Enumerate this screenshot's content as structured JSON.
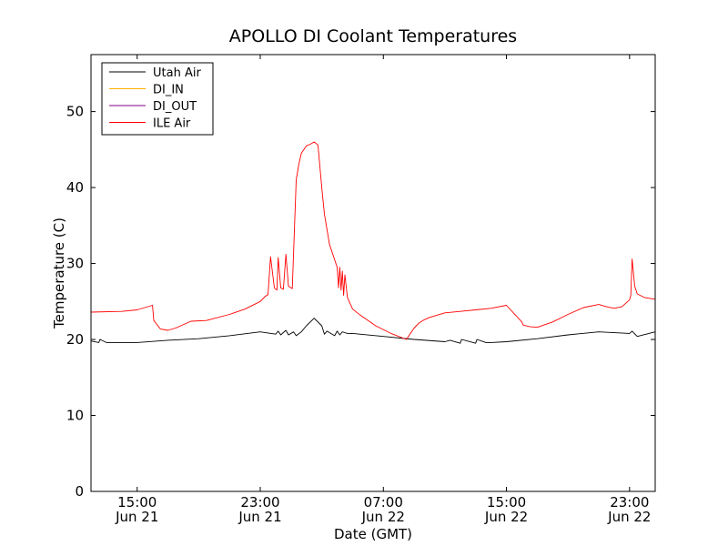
{
  "chart_data": {
    "type": "line",
    "title": "APOLLO DI Coolant Temperatures",
    "xlabel": "Date (GMT)",
    "ylabel": "Temperature (C)",
    "ylim": [
      0,
      57.5
    ],
    "xlim": [
      "2012-06-21 12:00",
      "2012-06-23 00:40"
    ],
    "yticks": [
      0,
      10,
      20,
      30,
      40,
      50
    ],
    "xticks": [
      {
        "time": "2012-06-21 15:00",
        "label1": "15:00",
        "label2": "Jun 21"
      },
      {
        "time": "2012-06-21 23:00",
        "label1": "23:00",
        "label2": "Jun 21"
      },
      {
        "time": "2012-06-22 07:00",
        "label1": "07:00",
        "label2": "Jun 22"
      },
      {
        "time": "2012-06-22 15:00",
        "label1": "15:00",
        "label2": "Jun 22"
      },
      {
        "time": "2012-06-22 23:00",
        "label1": "23:00",
        "label2": "Jun 22"
      }
    ],
    "grid": false,
    "legend_position": "top-left",
    "series": [
      {
        "name": "Utah Air",
        "color": "#000000",
        "x": [
          "2012-06-21 12:00",
          "2012-06-21 12:30",
          "2012-06-21 12:35",
          "2012-06-21 13:00",
          "2012-06-21 14:00",
          "2012-06-21 15:00",
          "2012-06-21 17:00",
          "2012-06-21 19:00",
          "2012-06-21 21:00",
          "2012-06-21 23:00",
          "2012-06-22 00:00",
          "2012-06-22 00:10",
          "2012-06-22 00:20",
          "2012-06-22 00:40",
          "2012-06-22 00:50",
          "2012-06-22 01:10",
          "2012-06-22 01:20",
          "2012-06-22 01:40",
          "2012-06-22 02:00",
          "2012-06-22 02:30",
          "2012-06-22 03:00",
          "2012-06-22 03:10",
          "2012-06-22 03:20",
          "2012-06-22 03:50",
          "2012-06-22 04:00",
          "2012-06-22 04:10",
          "2012-06-22 04:20",
          "2012-06-22 04:30",
          "2012-06-22 04:40",
          "2012-06-22 05:00",
          "2012-06-22 07:00",
          "2012-06-22 09:00",
          "2012-06-22 11:00",
          "2012-06-22 11:20",
          "2012-06-22 12:00",
          "2012-06-22 12:05",
          "2012-06-22 13:00",
          "2012-06-22 13:05",
          "2012-06-22 13:40",
          "2012-06-22 14:00",
          "2012-06-22 15:00",
          "2012-06-22 17:00",
          "2012-06-22 19:00",
          "2012-06-22 21:00",
          "2012-06-22 23:00",
          "2012-06-22 23:10",
          "2012-06-22 23:30",
          "2012-06-23 00:40"
        ],
        "y": [
          19.8,
          19.6,
          20.0,
          19.6,
          19.6,
          19.6,
          19.9,
          20.1,
          20.5,
          21.0,
          20.7,
          21.1,
          20.6,
          21.2,
          20.6,
          21.0,
          20.5,
          21.0,
          21.8,
          22.8,
          21.8,
          20.7,
          21.1,
          20.5,
          21.1,
          20.6,
          21.0,
          20.9,
          20.8,
          20.8,
          20.4,
          20.0,
          19.7,
          19.9,
          19.5,
          20.0,
          19.5,
          20.0,
          19.6,
          19.6,
          19.7,
          20.1,
          20.6,
          21.0,
          20.8,
          21.1,
          20.4,
          21.0
        ]
      },
      {
        "name": "DI_IN",
        "color": "#ffb000",
        "x": [],
        "y": []
      },
      {
        "name": "DI_OUT",
        "color": "#800080",
        "x": [],
        "y": []
      },
      {
        "name": "ILE Air",
        "color": "#ff0000",
        "x": [
          "2012-06-21 12:00",
          "2012-06-21 14:00",
          "2012-06-21 15:00",
          "2012-06-21 16:00",
          "2012-06-21 16:05",
          "2012-06-21 16:30",
          "2012-06-21 17:00",
          "2012-06-21 17:30",
          "2012-06-21 18:30",
          "2012-06-21 19:30",
          "2012-06-21 21:00",
          "2012-06-21 22:00",
          "2012-06-21 23:00",
          "2012-06-21 23:20",
          "2012-06-21 23:30",
          "2012-06-21 23:40",
          "2012-06-21 23:55",
          "2012-06-22 00:05",
          "2012-06-22 00:10",
          "2012-06-22 00:20",
          "2012-06-22 00:30",
          "2012-06-22 00:40",
          "2012-06-22 00:50",
          "2012-06-22 01:05",
          "2012-06-22 01:15",
          "2012-06-22 01:20",
          "2012-06-22 01:30",
          "2012-06-22 01:40",
          "2012-06-22 02:00",
          "2012-06-22 02:15",
          "2012-06-22 02:30",
          "2012-06-22 02:45",
          "2012-06-22 03:00",
          "2012-06-22 03:10",
          "2012-06-22 03:30",
          "2012-06-22 03:50",
          "2012-06-22 04:00",
          "2012-06-22 04:05",
          "2012-06-22 04:10",
          "2012-06-22 04:15",
          "2012-06-22 04:20",
          "2012-06-22 04:25",
          "2012-06-22 04:30",
          "2012-06-22 04:40",
          "2012-06-22 05:00",
          "2012-06-22 05:30",
          "2012-06-22 06:30",
          "2012-06-22 07:30",
          "2012-06-22 08:30",
          "2012-06-22 09:00",
          "2012-06-22 09:20",
          "2012-06-22 09:40",
          "2012-06-22 10:00",
          "2012-06-22 11:00",
          "2012-06-22 12:00",
          "2012-06-22 13:00",
          "2012-06-22 14:00",
          "2012-06-22 15:00",
          "2012-06-22 16:00",
          "2012-06-22 16:05",
          "2012-06-22 16:30",
          "2012-06-22 17:00",
          "2012-06-22 18:00",
          "2012-06-22 19:00",
          "2012-06-22 20:00",
          "2012-06-22 21:00",
          "2012-06-22 21:30",
          "2012-06-22 22:00",
          "2012-06-22 22:30",
          "2012-06-22 23:00",
          "2012-06-22 23:05",
          "2012-06-22 23:10",
          "2012-06-22 23:20",
          "2012-06-22 23:30",
          "2012-06-23 00:00",
          "2012-06-23 00:40"
        ],
        "y": [
          23.6,
          23.7,
          23.9,
          24.5,
          22.5,
          21.4,
          21.2,
          21.5,
          22.4,
          22.5,
          23.3,
          24.0,
          25.0,
          25.7,
          25.9,
          30.9,
          26.8,
          26.5,
          30.8,
          26.8,
          26.6,
          31.2,
          27.0,
          26.7,
          36.0,
          41.0,
          43.0,
          44.5,
          45.5,
          45.7,
          46.0,
          45.6,
          40.0,
          36.5,
          32.5,
          30.5,
          29.5,
          26.8,
          29.5,
          26.5,
          29.0,
          25.8,
          28.5,
          25.5,
          24.0,
          23.2,
          21.8,
          20.8,
          20.0,
          21.5,
          22.2,
          22.6,
          22.9,
          23.5,
          23.7,
          23.9,
          24.1,
          24.5,
          22.3,
          21.9,
          21.7,
          21.6,
          22.3,
          23.3,
          24.2,
          24.6,
          24.3,
          24.1,
          24.3,
          25.2,
          25.8,
          30.6,
          27.0,
          26.0,
          25.5,
          25.3
        ]
      }
    ]
  }
}
